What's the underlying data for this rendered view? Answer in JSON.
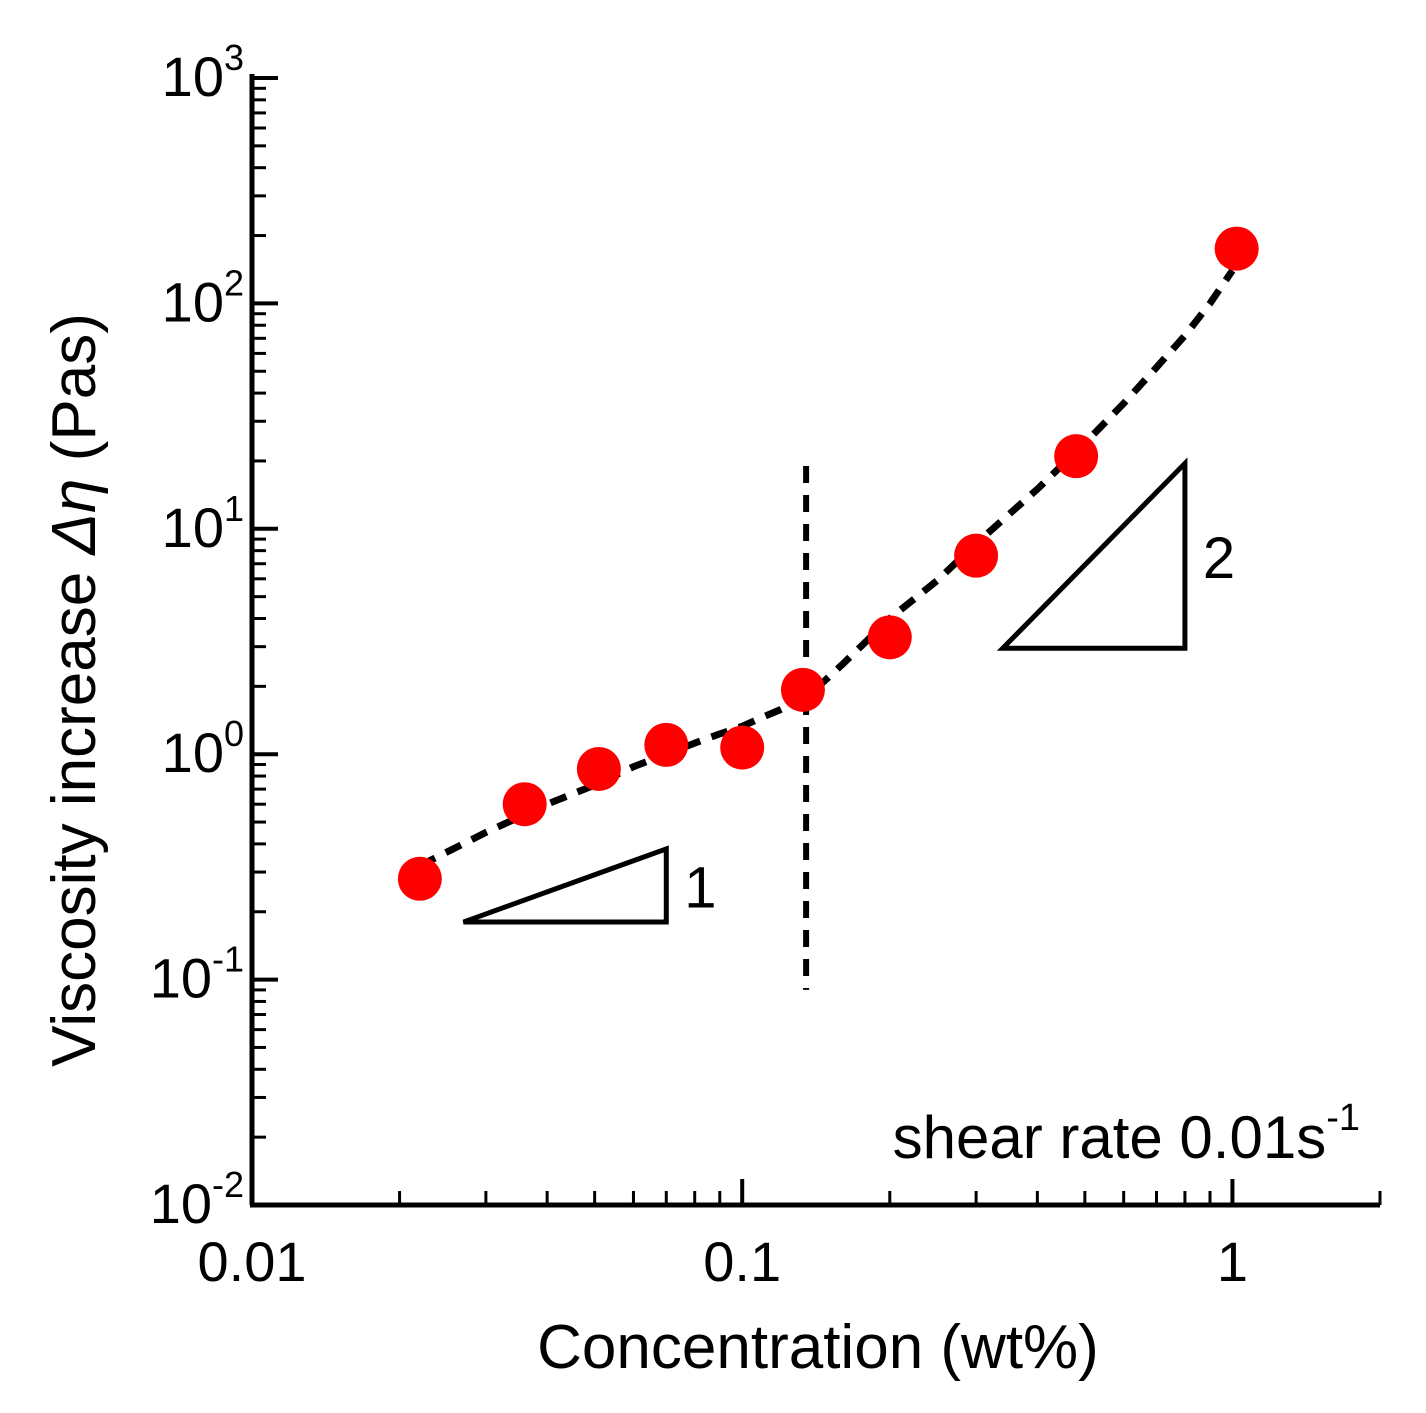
{
  "chart_data": {
    "type": "scatter",
    "title": "",
    "xlabel": "Concentration (wt%)",
    "ylabel_prefix": "Viscosity increase ",
    "ylabel_symbol": "Δη",
    "ylabel_suffix": " (Pas)",
    "xscale": "log",
    "yscale": "log",
    "xlim": [
      0.01,
      2
    ],
    "ylim": [
      0.01,
      1000
    ],
    "x_ticks": [
      {
        "value": 0.01,
        "label": "0.01"
      },
      {
        "value": 0.1,
        "label": "0.1"
      },
      {
        "value": 1,
        "label": "1"
      }
    ],
    "y_ticks": [
      {
        "value": 0.01,
        "base": "10",
        "exp": "-2"
      },
      {
        "value": 0.1,
        "base": "10",
        "exp": "-1"
      },
      {
        "value": 1,
        "base": "10",
        "exp": "0"
      },
      {
        "value": 10,
        "base": "10",
        "exp": "1"
      },
      {
        "value": 100,
        "base": "10",
        "exp": "2"
      },
      {
        "value": 1000,
        "base": "10",
        "exp": "3"
      }
    ],
    "series": [
      {
        "name": "data",
        "color": "#ff0000",
        "x": [
          0.022,
          0.036,
          0.051,
          0.07,
          0.1,
          0.133,
          0.2,
          0.3,
          0.48,
          1.02
        ],
        "y": [
          0.28,
          0.6,
          0.86,
          1.1,
          1.07,
          1.93,
          3.3,
          7.6,
          21,
          175
        ]
      }
    ],
    "fit_line": {
      "name": "fit",
      "color": "#000000",
      "x": [
        0.022,
        0.03,
        0.04,
        0.05,
        0.06,
        0.07,
        0.08,
        0.09,
        0.1,
        0.11,
        0.12,
        0.13,
        0.135,
        0.16,
        0.2,
        0.25,
        0.3,
        0.4,
        0.5,
        0.6,
        0.7,
        0.8,
        0.9,
        1.0
      ],
      "y": [
        0.32,
        0.45,
        0.6,
        0.73,
        0.88,
        1.0,
        1.12,
        1.23,
        1.33,
        1.46,
        1.58,
        1.72,
        1.78,
        2.5,
        4.0,
        5.9,
        8.6,
        15.0,
        24.0,
        36.0,
        52.0,
        72.0,
        100.0,
        140.0
      ]
    },
    "vertical_line": {
      "x": 0.135,
      "y_range": [
        0.09,
        19
      ]
    },
    "slope_triangles": [
      {
        "label": "1",
        "x0": 0.027,
        "x1": 0.07,
        "y0": 0.18,
        "y1": 0.38
      },
      {
        "label": "2",
        "x0": 0.34,
        "x1": 0.8,
        "y0": 2.95,
        "y1": 19.5
      }
    ],
    "annotation": {
      "text": "shear rate 0.01s",
      "superscript": "-1"
    },
    "legend": "none",
    "grid": false
  }
}
